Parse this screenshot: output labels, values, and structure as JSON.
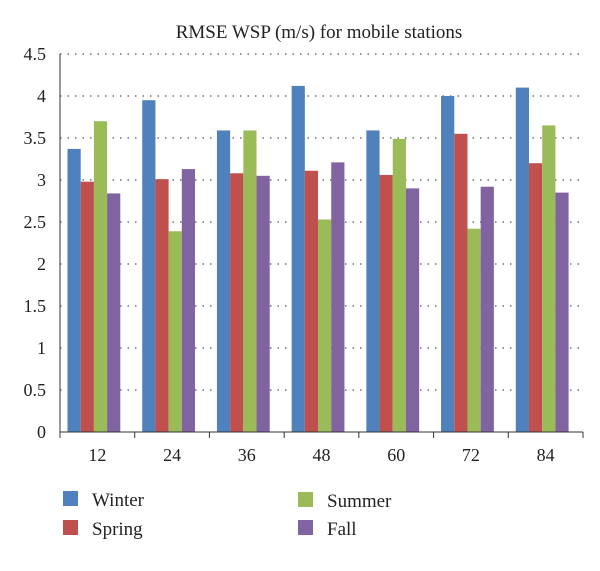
{
  "chart_data": {
    "type": "bar",
    "title": "RMSE WSP (m/s) for mobile stations",
    "xlabel": "",
    "ylabel": "",
    "categories": [
      "12",
      "24",
      "36",
      "48",
      "60",
      "72",
      "84"
    ],
    "ylim": [
      0,
      4.5
    ],
    "yticks": [
      "0",
      "0.5",
      "1",
      "1.5",
      "2",
      "2.5",
      "3",
      "3.5",
      "4",
      "4.5"
    ],
    "grid": true,
    "legend_position": "bottom",
    "series": [
      {
        "name": "Winter",
        "color": "#4f81bd",
        "values": [
          3.37,
          3.95,
          3.59,
          4.12,
          3.59,
          4.0,
          4.1
        ]
      },
      {
        "name": "Spring",
        "color": "#c0504d",
        "values": [
          2.98,
          3.01,
          3.08,
          3.11,
          3.06,
          3.55,
          3.2
        ]
      },
      {
        "name": "Summer",
        "color": "#9bbb59",
        "values": [
          3.7,
          2.39,
          3.59,
          2.53,
          3.49,
          2.42,
          3.65
        ]
      },
      {
        "name": "Fall",
        "color": "#8064a2",
        "values": [
          2.84,
          3.13,
          3.05,
          3.21,
          2.9,
          2.92,
          2.85
        ]
      }
    ]
  }
}
